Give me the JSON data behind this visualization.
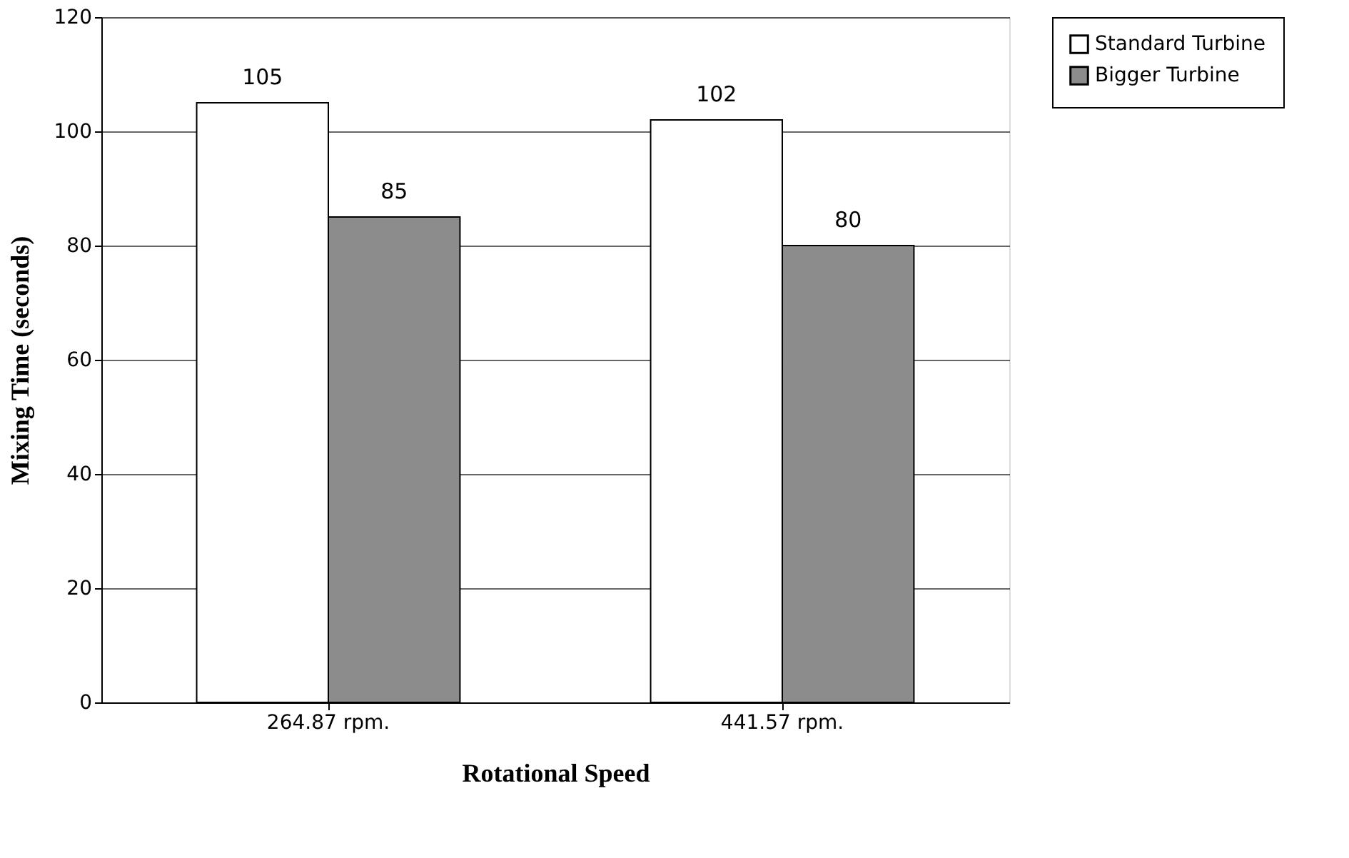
{
  "chart_data": {
    "type": "bar",
    "xlabel": "Rotational Speed",
    "ylabel": "Mixing Time (seconds)",
    "categories": [
      "264.87 rpm.",
      "441.57 rpm."
    ],
    "series": [
      {
        "name": "Standard Turbine",
        "color": "#ffffff",
        "values": [
          105,
          102
        ]
      },
      {
        "name": "Bigger Turbine",
        "color": "#8c8c8c",
        "values": [
          85,
          80
        ]
      }
    ],
    "ylim": [
      0,
      120
    ],
    "yticks": [
      0,
      20,
      40,
      60,
      80,
      100,
      120
    ],
    "grid": "y",
    "legend": "right",
    "data_labels": true
  }
}
